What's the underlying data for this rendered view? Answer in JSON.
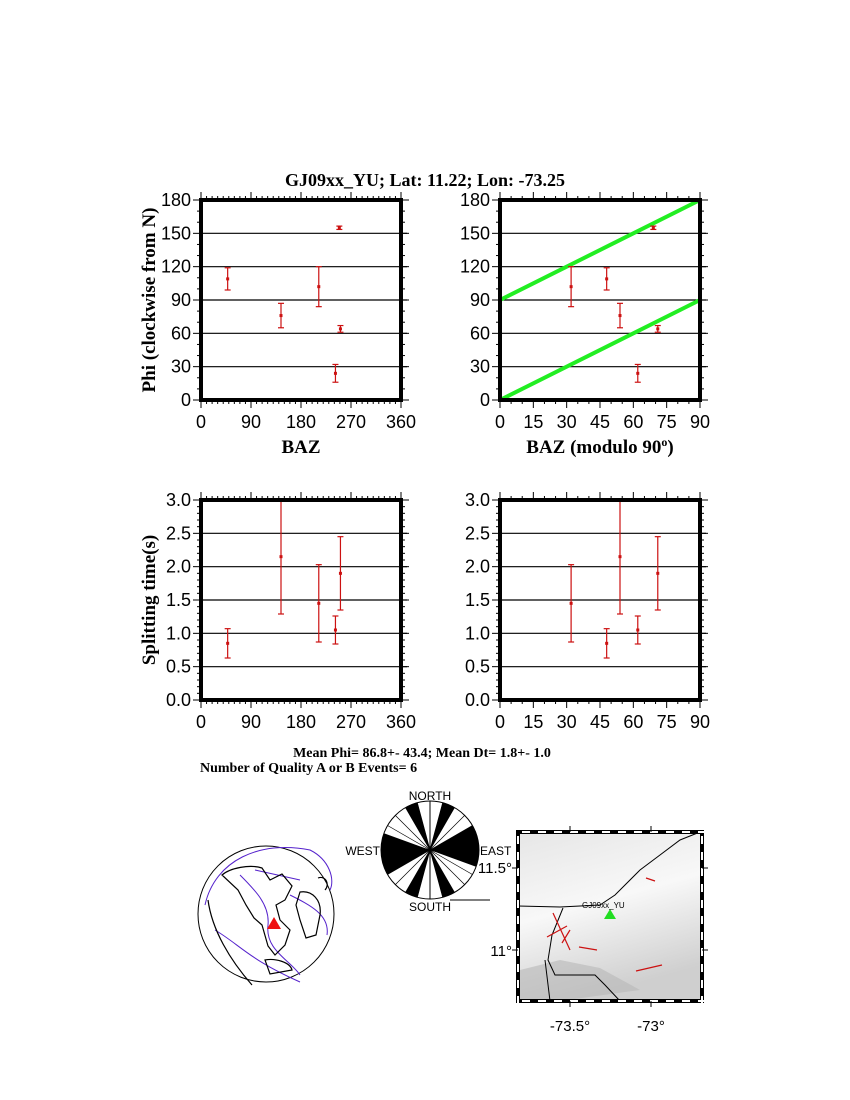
{
  "title": "GJ09xx_YU; Lat:  11.22;  Lon:  -73.25",
  "summary": {
    "line1": "Mean Phi= 86.8+- 43.4; Mean Dt=  1.8+-  1.0",
    "line2": "Number of Quality A or B Events=  6"
  },
  "colors": {
    "points": "#cc1111",
    "fit_lines": "#22ee22",
    "station": "#22dd22",
    "globe_station": "#ee1111",
    "plate_lines": "#5522cc"
  },
  "chart_data": [
    {
      "id": "phi-vs-baz",
      "type": "scatter",
      "xlabel": "BAZ",
      "ylabel": "Phi (clockwise from N)",
      "xlim": [
        0,
        360
      ],
      "ylim": [
        0,
        180
      ],
      "xticks": [
        0,
        90,
        180,
        270,
        360
      ],
      "yticks": [
        0,
        30,
        60,
        90,
        120,
        150,
        180
      ],
      "xminor": 10,
      "yminor": 10,
      "grid": "horizontal",
      "x": [
        48,
        144,
        212,
        249,
        251,
        242
      ],
      "y": [
        109,
        76,
        102,
        155,
        64,
        24
      ],
      "yerr": [
        10,
        11,
        18,
        1.5,
        3,
        8
      ]
    },
    {
      "id": "phi-vs-baz-mod90",
      "type": "scatter",
      "xlabel": "BAZ (modulo 90",
      "xlabel_sup": "o",
      "xlabel_end": ")",
      "ylabel": "",
      "xlim": [
        0,
        90
      ],
      "ylim": [
        0,
        180
      ],
      "xticks": [
        0,
        15,
        30,
        45,
        60,
        75,
        90
      ],
      "yticks": [
        0,
        30,
        60,
        90,
        120,
        150,
        180
      ],
      "xminor": 5,
      "yminor": 10,
      "grid": "horizontal",
      "x": [
        48,
        54,
        32,
        69,
        71,
        62
      ],
      "y": [
        109,
        76,
        102,
        155,
        64,
        24
      ],
      "yerr": [
        10,
        11,
        18,
        1.5,
        3,
        8
      ],
      "lines": [
        {
          "x": [
            0,
            90
          ],
          "y": [
            0,
            90
          ]
        },
        {
          "x": [
            0,
            90
          ],
          "y": [
            90,
            180
          ]
        }
      ]
    },
    {
      "id": "dt-vs-baz",
      "type": "scatter",
      "xlabel": "",
      "ylabel": "Splitting time(s)",
      "xlim": [
        0,
        360
      ],
      "ylim": [
        0,
        3
      ],
      "xticks": [
        0,
        90,
        180,
        270,
        360
      ],
      "yticks": [
        "0.0",
        "0.5",
        "1.0",
        "1.5",
        "2.0",
        "2.5",
        "3.0"
      ],
      "xminor": 10,
      "yminor": 0.1,
      "grid": "horizontal",
      "x": [
        48,
        144,
        212,
        242,
        251
      ],
      "y": [
        0.85,
        2.15,
        1.45,
        1.05,
        1.9
      ],
      "yerr": [
        0.22,
        0.86,
        0.58,
        0.21,
        0.55
      ]
    },
    {
      "id": "dt-vs-baz-mod90",
      "type": "scatter",
      "xlabel": "",
      "ylabel": "",
      "xlim": [
        0,
        90
      ],
      "ylim": [
        0,
        3
      ],
      "xticks": [
        0,
        15,
        30,
        45,
        60,
        75,
        90
      ],
      "yticks": [
        "0.0",
        "0.5",
        "1.0",
        "1.5",
        "2.0",
        "2.5",
        "3.0"
      ],
      "xminor": 5,
      "yminor": 0.1,
      "grid": "horizontal",
      "x": [
        48,
        54,
        32,
        62,
        71
      ],
      "y": [
        0.85,
        2.15,
        1.45,
        1.05,
        1.9
      ],
      "yerr": [
        0.22,
        0.86,
        0.58,
        0.21,
        0.55
      ]
    }
  ],
  "rose": {
    "labels": {
      "north": "NORTH",
      "south": "SOUTH",
      "east": "EAST",
      "west": "WEST"
    },
    "black_sectors_deg": [
      [
        15,
        30
      ],
      [
        60,
        110
      ],
      [
        150,
        165
      ],
      [
        195,
        210
      ],
      [
        240,
        290
      ],
      [
        330,
        345
      ]
    ]
  },
  "map": {
    "station_label": "GJ09xx_YU",
    "lon_ticks": [
      "-73.5°",
      "-73°"
    ],
    "lat_ticks": [
      "11.5°",
      "11°"
    ]
  }
}
